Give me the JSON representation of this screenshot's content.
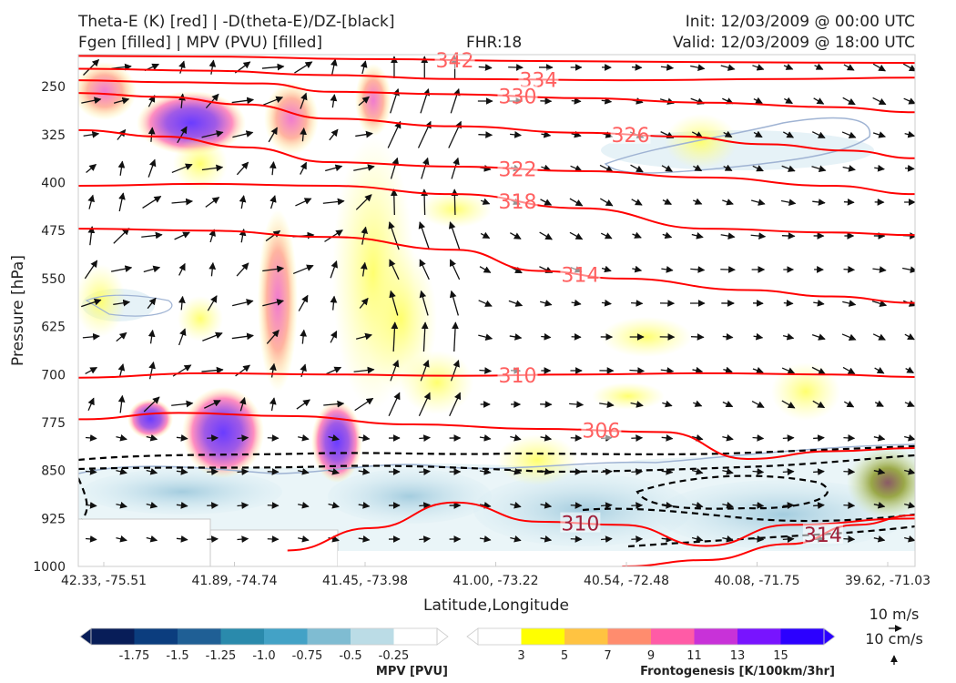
{
  "header": {
    "title_left_1": "Theta-E (K) [red] | -D(theta-E)/DZ-[black]",
    "title_left_2": "Fgen [filled] | MPV (PVU) [filled]",
    "title_center": "FHR:18",
    "title_right_1": "Init: 12/03/2009 @ 00:00 UTC",
    "title_right_2": "Valid: 12/03/2009 @ 18:00 UTC"
  },
  "chart_data": {
    "type": "cross-section",
    "xlabel": "Latitude,Longitude",
    "ylabel": "Pressure [hPa]",
    "ylim": [
      1000,
      200
    ],
    "x_ticks": [
      "42.33, -75.51",
      "41.89, -74.74",
      "41.45, -73.98",
      "41.00, -73.22",
      "40.54, -72.48",
      "40.08, -71.75",
      "39.62, -71.03"
    ],
    "y_ticks": [
      250,
      325,
      400,
      475,
      550,
      625,
      700,
      775,
      850,
      925,
      1000
    ],
    "theta_e_color": "#ff0000",
    "theta_e_contours": [
      {
        "label": "342",
        "points": [
          [
            0,
            202
          ],
          [
            0.15,
            203
          ],
          [
            0.35,
            207
          ],
          [
            0.55,
            210
          ],
          [
            0.8,
            212
          ],
          [
            1,
            213
          ]
        ]
      },
      {
        "label": "334",
        "points": [
          [
            0,
            222
          ],
          [
            0.15,
            225
          ],
          [
            0.3,
            232
          ],
          [
            0.45,
            238
          ],
          [
            0.65,
            240
          ],
          [
            0.85,
            238
          ],
          [
            1,
            236
          ]
        ]
      },
      {
        "label": "330",
        "points": [
          [
            0,
            240
          ],
          [
            0.1,
            243
          ],
          [
            0.22,
            245
          ],
          [
            0.3,
            258
          ],
          [
            0.45,
            262
          ],
          [
            0.6,
            268
          ],
          [
            0.75,
            275
          ],
          [
            0.9,
            282
          ],
          [
            1,
            290
          ]
        ]
      },
      {
        "label": "326",
        "points": [
          [
            0,
            260
          ],
          [
            0.1,
            266
          ],
          [
            0.2,
            278
          ],
          [
            0.3,
            300
          ],
          [
            0.45,
            312
          ],
          [
            0.6,
            322
          ],
          [
            0.72,
            328
          ],
          [
            0.82,
            340
          ],
          [
            0.92,
            350
          ],
          [
            1,
            362
          ]
        ]
      },
      {
        "label": "322",
        "points": [
          [
            0,
            318
          ],
          [
            0.1,
            328
          ],
          [
            0.2,
            345
          ],
          [
            0.3,
            368
          ],
          [
            0.45,
            375
          ],
          [
            0.6,
            382
          ],
          [
            0.75,
            392
          ],
          [
            0.9,
            405
          ],
          [
            1,
            418
          ]
        ]
      },
      {
        "label": "318",
        "points": [
          [
            0,
            405
          ],
          [
            0.15,
            402
          ],
          [
            0.3,
            405
          ],
          [
            0.45,
            418
          ],
          [
            0.6,
            440
          ],
          [
            0.75,
            472
          ],
          [
            0.9,
            478
          ],
          [
            1,
            482
          ]
        ]
      },
      {
        "label": "314",
        "points": [
          [
            0,
            472
          ],
          [
            0.15,
            475
          ],
          [
            0.3,
            485
          ],
          [
            0.45,
            505
          ],
          [
            0.55,
            538
          ],
          [
            0.65,
            550
          ],
          [
            0.8,
            568
          ],
          [
            0.9,
            578
          ],
          [
            1,
            588
          ]
        ]
      },
      {
        "label": "310",
        "points": [
          [
            0,
            705
          ],
          [
            0.15,
            698
          ],
          [
            0.3,
            700
          ],
          [
            0.45,
            702
          ],
          [
            0.6,
            700
          ],
          [
            0.75,
            698
          ],
          [
            0.9,
            700
          ],
          [
            1,
            704
          ]
        ]
      },
      {
        "label": "306",
        "points": [
          [
            0,
            770
          ],
          [
            0.12,
            760
          ],
          [
            0.25,
            765
          ],
          [
            0.4,
            778
          ],
          [
            0.55,
            785
          ],
          [
            0.7,
            790
          ],
          [
            0.8,
            832
          ],
          [
            0.9,
            820
          ],
          [
            1,
            815
          ]
        ]
      },
      {
        "label": "310",
        "points": [
          [
            0.25,
            975
          ],
          [
            0.35,
            940
          ],
          [
            0.45,
            900
          ],
          [
            0.55,
            930
          ],
          [
            0.65,
            935
          ],
          [
            0.75,
            968
          ],
          [
            0.85,
            935
          ],
          [
            1,
            925
          ]
        ]
      },
      {
        "label": "314",
        "points": [
          [
            0.65,
            1000
          ],
          [
            0.75,
            990
          ],
          [
            0.85,
            965
          ],
          [
            0.93,
            935
          ],
          [
            1,
            920
          ]
        ]
      }
    ],
    "stability_color": "#000000",
    "mpv_colorbar": {
      "title": "MPV [PVU]",
      "levels": [
        "-1.75",
        "-1.5",
        "-1.25",
        "-1.0",
        "-0.75",
        "-0.5",
        "-0.25"
      ],
      "colors": [
        "#081d58",
        "#0b3d7e",
        "#1f5f95",
        "#2a8aac",
        "#43a2c6",
        "#7fbcd2",
        "#bbdce6",
        "#ffffff"
      ]
    },
    "fgen_colorbar": {
      "title": "Frontogenesis [K/100km/3hr]",
      "levels": [
        "3",
        "5",
        "7",
        "9",
        "11",
        "13",
        "15"
      ],
      "colors": [
        "#ffffff",
        "#ffff00",
        "#ffc341",
        "#ff8c6e",
        "#ff5ba6",
        "#c832d8",
        "#7814ff",
        "#2c00ff"
      ]
    },
    "wind_key": {
      "horizontal": "10 m/s",
      "vertical": "10 cm/s"
    }
  }
}
